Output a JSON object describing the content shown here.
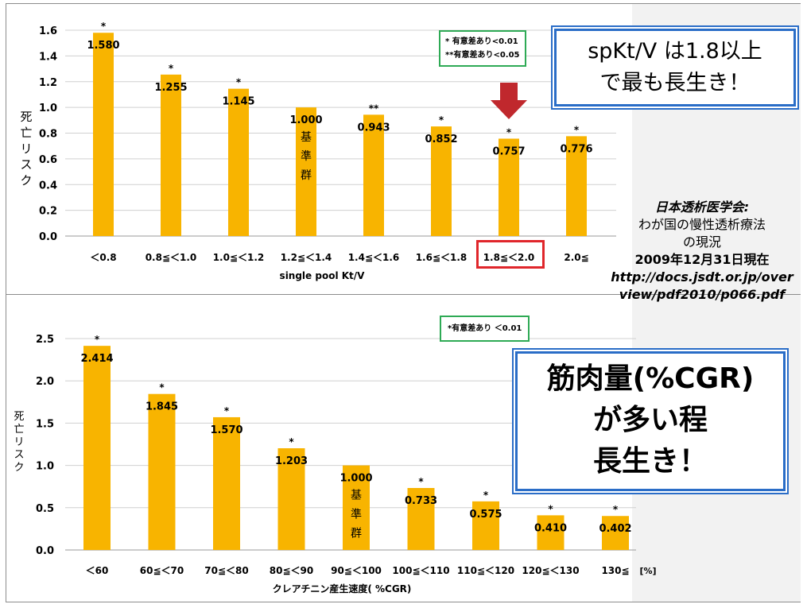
{
  "colors": {
    "bar": "#f8b400",
    "legend_border": "#2eaa55",
    "callout_border": "#2a6dc7",
    "highlight": "#e0262b",
    "arrow": "#c0282d"
  },
  "top_legend": {
    "line1": "* 有意差あり<0.01",
    "line2": "**有意差あり<0.05"
  },
  "top_callout": {
    "line1": "spKt/V は1.8以上",
    "line2": "で最も長生き！"
  },
  "bottom_legend": {
    "line1": "*有意差あり ＜0.01"
  },
  "bottom_callout": {
    "line1": "筋肉量(%CGR)",
    "line2": "が多い程",
    "line3": "長生き！"
  },
  "source": {
    "title": "日本透析医学会:",
    "line2": "わが国の慢性透析療法",
    "line3": "の現況",
    "date": "2009年12月31日現在",
    "url1": "http://docs.jsdt.or.jp/over",
    "url2": "view/pdf2010/p066.pdf"
  },
  "chart_data": [
    {
      "type": "bar",
      "xlabel": "single pool Kt/V",
      "ylabel": "死亡リスク",
      "ylim": [
        0,
        1.6
      ],
      "yticks": [
        "0.0",
        "0.2",
        "0.4",
        "0.6",
        "0.8",
        "1.0",
        "1.2",
        "1.4",
        "1.6"
      ],
      "grid": true,
      "categories": [
        "＜0.8",
        "0.8≦＜1.0",
        "1.0≦＜1.2",
        "1.2≦＜1.4",
        "1.4≦＜1.6",
        "1.6≦＜1.8",
        "1.8≦＜2.0",
        "2.0≦"
      ],
      "values": [
        1.58,
        1.255,
        1.145,
        1.0,
        0.943,
        0.852,
        0.757,
        0.776
      ],
      "value_labels": [
        "1.580",
        "1.255",
        "1.145",
        "1.000",
        "0.943",
        "0.852",
        "0.757",
        "0.776"
      ],
      "significance": [
        "*",
        "*",
        "*",
        "",
        "**",
        "*",
        "*",
        "*"
      ],
      "reference_index": 3,
      "reference_label": [
        "基",
        "準",
        "群"
      ],
      "highlight_index": 6
    },
    {
      "type": "bar",
      "xlabel": "クレアチニン産生速度( %CGR)",
      "ylabel": "死亡リスク",
      "unit": "[%]",
      "ylim": [
        0,
        2.5
      ],
      "yticks": [
        "0.0",
        "0.5",
        "1.0",
        "1.5",
        "2.0",
        "2.5"
      ],
      "grid": true,
      "categories": [
        "＜60",
        "60≦＜70",
        "70≦＜80",
        "80≦＜90",
        "90≦＜100",
        "100≦＜110",
        "110≦＜120",
        "120≦＜130",
        "130≦"
      ],
      "values": [
        2.414,
        1.845,
        1.57,
        1.203,
        1.0,
        0.733,
        0.575,
        0.41,
        0.402
      ],
      "value_labels": [
        "2.414",
        "1.845",
        "1.570",
        "1.203",
        "1.000",
        "0.733",
        "0.575",
        "0.410",
        "0.402"
      ],
      "significance": [
        "*",
        "*",
        "*",
        "*",
        "",
        "*",
        "*",
        "*",
        "*"
      ],
      "reference_index": 4,
      "reference_label": [
        "基",
        "準",
        "群"
      ]
    }
  ]
}
